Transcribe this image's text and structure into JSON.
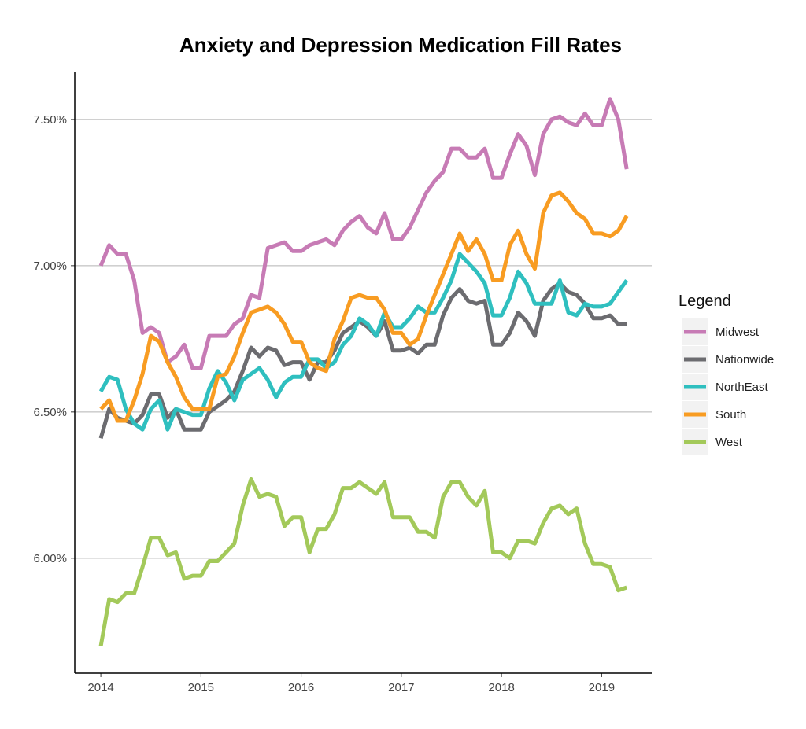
{
  "chart_data": {
    "type": "line",
    "title": "Anxiety and Depression Medication Fill Rates",
    "xlabel": "",
    "ylabel": "",
    "x_start": "2014-01",
    "x_frequency": "monthly",
    "xlim": [
      2013.74,
      2019.5
    ],
    "ylim": [
      5.607,
      7.661
    ],
    "x_ticks": [
      2014,
      2015,
      2016,
      2017,
      2018,
      2019
    ],
    "x_tick_labels": [
      "2014",
      "2015",
      "2016",
      "2017",
      "2018",
      "2019"
    ],
    "y_ticks": [
      6.0,
      6.5,
      7.0,
      7.5
    ],
    "y_tick_labels": [
      "6.00%",
      "6.50%",
      "7.00%",
      "7.50%"
    ],
    "grid": "horizontal major",
    "legend": {
      "title": "Legend",
      "placement": "right"
    },
    "series": [
      {
        "name": "Midwest",
        "color": "#c77bb5",
        "values": [
          7.0,
          7.07,
          7.04,
          7.04,
          6.95,
          6.77,
          6.79,
          6.77,
          6.67,
          6.69,
          6.73,
          6.65,
          6.65,
          6.76,
          6.76,
          6.76,
          6.8,
          6.82,
          6.9,
          6.89,
          7.06,
          7.07,
          7.08,
          7.05,
          7.05,
          7.07,
          7.08,
          7.09,
          7.07,
          7.12,
          7.15,
          7.17,
          7.13,
          7.11,
          7.18,
          7.09,
          7.09,
          7.13,
          7.19,
          7.25,
          7.29,
          7.32,
          7.4,
          7.4,
          7.37,
          7.37,
          7.4,
          7.3,
          7.3,
          7.38,
          7.45,
          7.41,
          7.31,
          7.45,
          7.5,
          7.51,
          7.49,
          7.48,
          7.52,
          7.48,
          7.48,
          7.57,
          7.5,
          7.33
        ]
      },
      {
        "name": "Nationwide",
        "color": "#6c6c70",
        "values": [
          6.41,
          6.51,
          6.48,
          6.47,
          6.46,
          6.49,
          6.56,
          6.56,
          6.48,
          6.51,
          6.44,
          6.44,
          6.44,
          6.5,
          6.52,
          6.54,
          6.57,
          6.64,
          6.72,
          6.69,
          6.72,
          6.71,
          6.66,
          6.67,
          6.67,
          6.61,
          6.67,
          6.67,
          6.71,
          6.77,
          6.79,
          6.81,
          6.79,
          6.76,
          6.81,
          6.71,
          6.71,
          6.72,
          6.7,
          6.73,
          6.73,
          6.83,
          6.89,
          6.92,
          6.88,
          6.87,
          6.88,
          6.73,
          6.73,
          6.77,
          6.84,
          6.81,
          6.76,
          6.88,
          6.92,
          6.94,
          6.91,
          6.9,
          6.87,
          6.82,
          6.82,
          6.83,
          6.8,
          6.8
        ]
      },
      {
        "name": "NorthEast",
        "color": "#2fbfbf",
        "values": [
          6.57,
          6.62,
          6.61,
          6.51,
          6.46,
          6.44,
          6.51,
          6.54,
          6.44,
          6.51,
          6.5,
          6.49,
          6.49,
          6.58,
          6.64,
          6.6,
          6.54,
          6.61,
          6.63,
          6.65,
          6.61,
          6.55,
          6.6,
          6.62,
          6.62,
          6.68,
          6.68,
          6.65,
          6.67,
          6.73,
          6.76,
          6.82,
          6.8,
          6.76,
          6.84,
          6.79,
          6.79,
          6.82,
          6.86,
          6.84,
          6.84,
          6.89,
          6.95,
          7.04,
          7.01,
          6.98,
          6.94,
          6.83,
          6.83,
          6.89,
          6.98,
          6.94,
          6.87,
          6.87,
          6.87,
          6.95,
          6.84,
          6.83,
          6.87,
          6.86,
          6.86,
          6.87,
          6.91,
          6.95
        ]
      },
      {
        "name": "South",
        "color": "#f89c22",
        "values": [
          6.51,
          6.54,
          6.47,
          6.47,
          6.54,
          6.63,
          6.76,
          6.74,
          6.67,
          6.62,
          6.55,
          6.51,
          6.51,
          6.51,
          6.62,
          6.63,
          6.69,
          6.77,
          6.84,
          6.85,
          6.86,
          6.84,
          6.8,
          6.74,
          6.74,
          6.67,
          6.65,
          6.64,
          6.75,
          6.81,
          6.89,
          6.9,
          6.89,
          6.89,
          6.85,
          6.77,
          6.77,
          6.73,
          6.75,
          6.83,
          6.9,
          6.97,
          7.04,
          7.11,
          7.05,
          7.09,
          7.04,
          6.95,
          6.95,
          7.07,
          7.12,
          7.04,
          6.99,
          7.18,
          7.24,
          7.25,
          7.22,
          7.18,
          7.16,
          7.11,
          7.11,
          7.1,
          7.12,
          7.17
        ]
      },
      {
        "name": "West",
        "color": "#a3c95a",
        "values": [
          5.7,
          5.86,
          5.85,
          5.88,
          5.88,
          5.97,
          6.07,
          6.07,
          6.01,
          6.02,
          5.93,
          5.94,
          5.94,
          5.99,
          5.99,
          6.02,
          6.05,
          6.18,
          6.27,
          6.21,
          6.22,
          6.21,
          6.11,
          6.14,
          6.14,
          6.02,
          6.1,
          6.1,
          6.15,
          6.24,
          6.24,
          6.26,
          6.24,
          6.22,
          6.26,
          6.14,
          6.14,
          6.14,
          6.09,
          6.09,
          6.07,
          6.21,
          6.26,
          6.26,
          6.21,
          6.18,
          6.23,
          6.02,
          6.02,
          6.0,
          6.06,
          6.06,
          6.05,
          6.12,
          6.17,
          6.18,
          6.15,
          6.17,
          6.05,
          5.98,
          5.98,
          5.97,
          5.89,
          5.9
        ]
      }
    ]
  }
}
